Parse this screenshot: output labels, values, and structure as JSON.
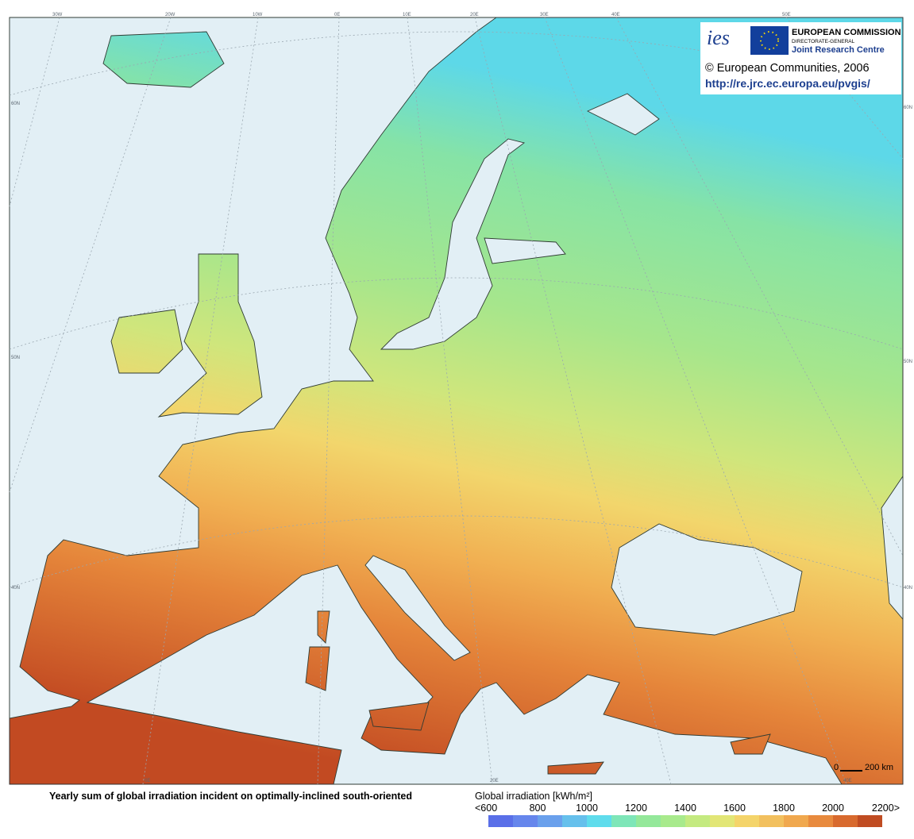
{
  "header": {
    "ies_logo": "ies",
    "commission": "EUROPEAN COMMISSION",
    "directorate": "DIRECTORATE-GENERAL",
    "centre": "Joint Research Centre",
    "copyright": "© European Communities, 2006",
    "url": "http://re.jrc.ec.europa.eu/pvgis/"
  },
  "map": {
    "graticule_labels": {
      "top": [
        "30W",
        "20W",
        "10W",
        "0E",
        "10E",
        "20E",
        "30E",
        "40E",
        "50E"
      ],
      "bottom": [
        "0E",
        "20E",
        "40E"
      ],
      "left": [
        "60N",
        "50N",
        "40N"
      ],
      "right": [
        "60N",
        "50N",
        "40N"
      ]
    },
    "scale_bar": {
      "start": "0",
      "end": "200 km"
    }
  },
  "footer": {
    "title": "Yearly sum of global irradiation incident on optimally-inclined south-oriented"
  },
  "legend": {
    "title": "Global irradiation [kWh/m²]",
    "labels": [
      "<600",
      "800",
      "1000",
      "1200",
      "1400",
      "1600",
      "1800",
      "2000",
      "2200>"
    ],
    "colors": [
      "#5a6fe8",
      "#6686ec",
      "#6aa0ec",
      "#66c0ec",
      "#5fdcec",
      "#7ee6b8",
      "#94e89a",
      "#a8ea8c",
      "#c4ea80",
      "#e2e676",
      "#f4d46a",
      "#f2c05e",
      "#f0a84e",
      "#e88a3e",
      "#d86a2e",
      "#c04c22"
    ]
  }
}
